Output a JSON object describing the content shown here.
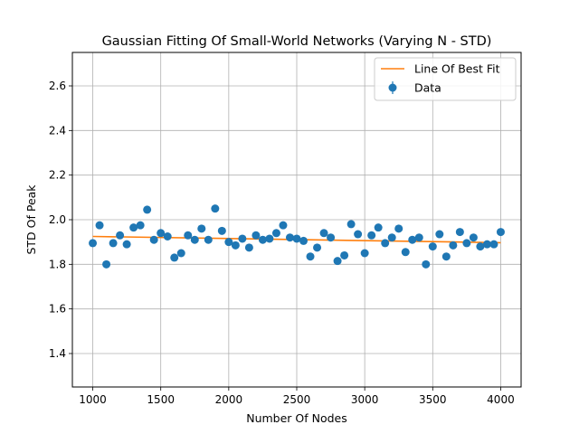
{
  "chart_data": {
    "type": "scatter",
    "title": "Gaussian Fitting Of Small-World Networks (Varying N - STD)",
    "xlabel": "Number Of Nodes",
    "ylabel": "STD Of Peak",
    "xlim": [
      850,
      4150
    ],
    "ylim": [
      1.25,
      2.75
    ],
    "xticks": [
      1000,
      1500,
      2000,
      2500,
      3000,
      3500,
      4000
    ],
    "yticks": [
      1.4,
      1.6,
      1.8,
      2.0,
      2.2,
      2.4,
      2.6
    ],
    "xtick_labels": [
      "1000",
      "1500",
      "2000",
      "2500",
      "3000",
      "3500",
      "4000"
    ],
    "ytick_labels": [
      "1.4",
      "1.6",
      "1.8",
      "2.0",
      "2.2",
      "2.4",
      "2.6"
    ],
    "grid": true,
    "legend_position": "top-right",
    "legend": [
      "Line Of Best Fit",
      "Data"
    ],
    "series": [
      {
        "name": "Data",
        "kind": "points",
        "color": "#1f77b4",
        "x": [
          1000,
          1050,
          1100,
          1150,
          1200,
          1250,
          1300,
          1350,
          1400,
          1450,
          1500,
          1550,
          1600,
          1650,
          1700,
          1750,
          1800,
          1850,
          1900,
          1950,
          2000,
          2050,
          2100,
          2150,
          2200,
          2250,
          2300,
          2350,
          2400,
          2450,
          2500,
          2550,
          2600,
          2650,
          2700,
          2750,
          2800,
          2850,
          2900,
          2950,
          3000,
          3050,
          3100,
          3150,
          3200,
          3250,
          3300,
          3350,
          3400,
          3450,
          3500,
          3550,
          3600,
          3650,
          3700,
          3750,
          3800,
          3850,
          3900,
          3950,
          4000
        ],
        "y": [
          1.895,
          1.975,
          1.8,
          1.895,
          1.93,
          1.89,
          1.965,
          1.975,
          2.045,
          1.91,
          1.94,
          1.925,
          1.83,
          1.85,
          1.93,
          1.91,
          1.96,
          1.91,
          2.05,
          1.95,
          1.9,
          1.885,
          1.915,
          1.875,
          1.93,
          1.91,
          1.915,
          1.94,
          1.975,
          1.92,
          1.915,
          1.905,
          1.835,
          1.875,
          1.94,
          1.92,
          1.815,
          1.84,
          1.98,
          1.935,
          1.85,
          1.93,
          1.965,
          1.895,
          1.92,
          1.96,
          1.855,
          1.91,
          1.92,
          1.8,
          1.88,
          1.935,
          1.835,
          1.885,
          1.945,
          1.895,
          1.92,
          1.88,
          1.89,
          1.89,
          1.945
        ]
      },
      {
        "name": "Line Of Best Fit",
        "kind": "line",
        "color": "#ff7f0e",
        "x": [
          1000,
          4000
        ],
        "y": [
          1.925,
          1.897
        ]
      }
    ]
  }
}
